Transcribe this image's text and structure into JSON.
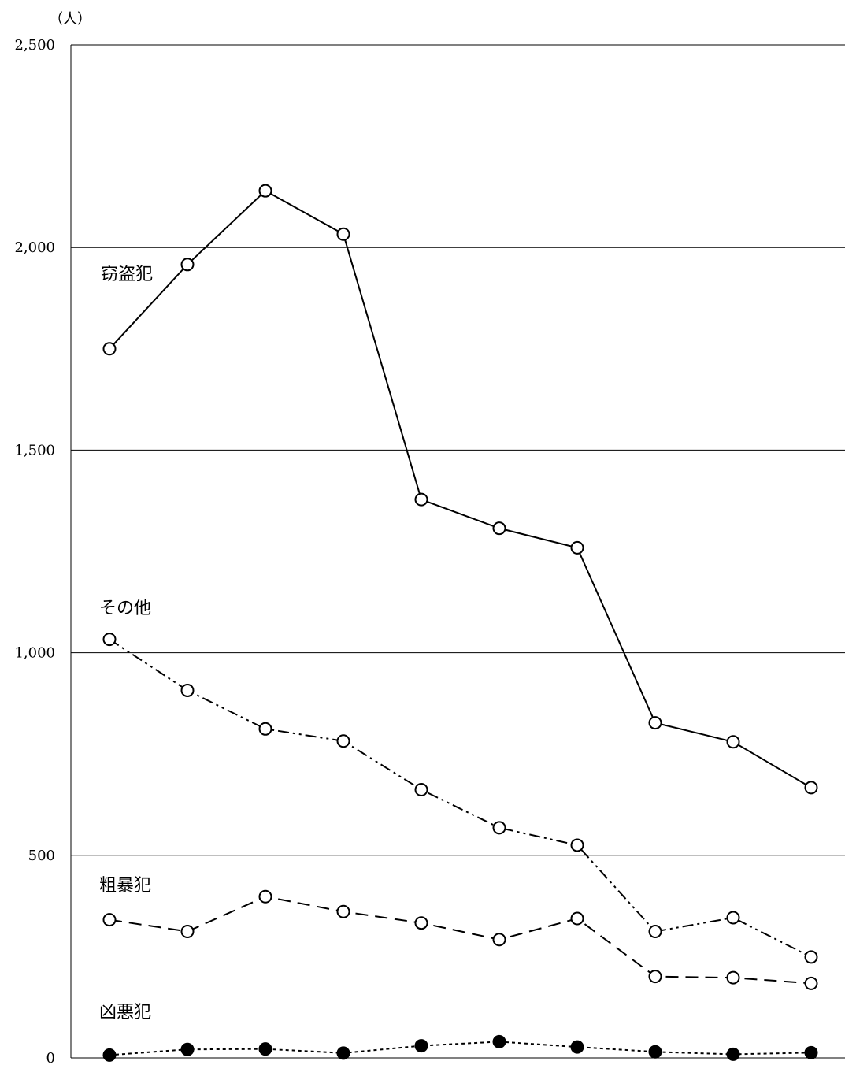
{
  "chart_data": {
    "type": "line",
    "unit_label": "（人）",
    "ylim": [
      0,
      2500
    ],
    "y_ticks": [
      {
        "value": 0,
        "label": "0"
      },
      {
        "value": 500,
        "label": "500"
      },
      {
        "value": 1000,
        "label": "1,000"
      },
      {
        "value": 1500,
        "label": "1,500"
      },
      {
        "value": 2000,
        "label": "2,000"
      },
      {
        "value": 2500,
        "label": "2,500"
      }
    ],
    "grid": true,
    "series": [
      {
        "name": "窃盗犯",
        "style": "solid",
        "marker": "open-circle",
        "values": [
          1750,
          1958,
          2140,
          2033,
          1378,
          1307,
          1259,
          827,
          780,
          667
        ]
      },
      {
        "name": "その他",
        "style": "dash-dot-dot",
        "marker": "open-circle",
        "values": [
          1033,
          907,
          812,
          782,
          662,
          568,
          525,
          312,
          346,
          249
        ]
      },
      {
        "name": "粗暴犯",
        "style": "dashed",
        "marker": "open-circle",
        "values": [
          341,
          312,
          398,
          361,
          333,
          292,
          344,
          201,
          198,
          184
        ]
      },
      {
        "name": "凶悪犯",
        "style": "dotted",
        "marker": "filled-circle",
        "values": [
          7,
          21,
          22,
          12,
          30,
          40,
          27,
          15,
          9,
          13
        ]
      }
    ]
  }
}
